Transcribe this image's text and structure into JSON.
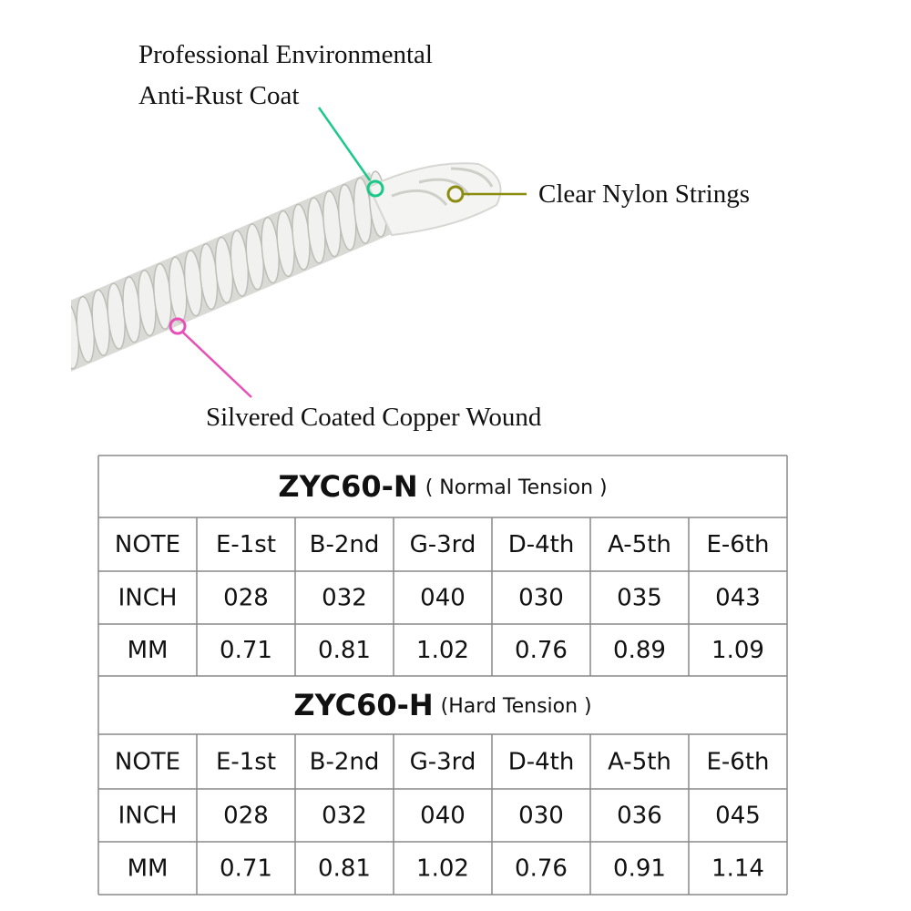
{
  "callouts": [
    {
      "lines": [
        "Professional Environmental",
        "Anti-Rust Coat"
      ]
    },
    {
      "lines": [
        "Clear Nylon Strings"
      ]
    },
    {
      "lines": [
        "Silvered Coated Copper Wound"
      ]
    }
  ],
  "tables": [
    {
      "model": "ZYC60-N",
      "tension": "( Normal Tension )",
      "rows": [
        [
          "NOTE",
          "E-1st",
          "B-2nd",
          "G-3rd",
          "D-4th",
          "A-5th",
          "E-6th"
        ],
        [
          "INCH",
          "028",
          "032",
          "040",
          "030",
          "035",
          "043"
        ],
        [
          "MM",
          "0.71",
          "0.81",
          "1.02",
          "0.76",
          "0.89",
          "1.09"
        ]
      ]
    },
    {
      "model": "ZYC60-H",
      "tension": "(Hard Tension )",
      "rows": [
        [
          "NOTE",
          "E-1st",
          "B-2nd",
          "G-3rd",
          "D-4th",
          "A-5th",
          "E-6th"
        ],
        [
          "INCH",
          "028",
          "032",
          "040",
          "030",
          "036",
          "045"
        ],
        [
          "MM",
          "0.71",
          "0.81",
          "1.02",
          "0.76",
          "0.91",
          "1.14"
        ]
      ]
    }
  ]
}
